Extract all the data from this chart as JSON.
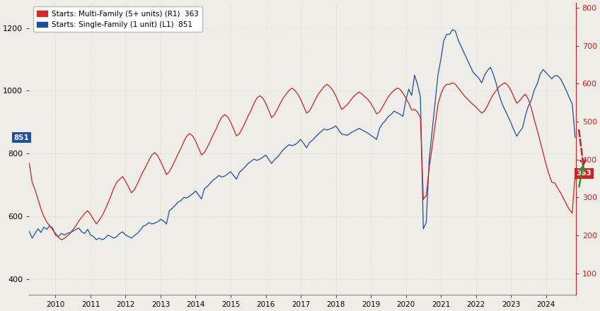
{
  "legend_entries": [
    "Starts: Multi-Family (5+ units) (R1)  363",
    "Starts: Single-Family (1 unit) (L1)  851"
  ],
  "legend_colors": [
    "#d12b2b",
    "#1a4f9c"
  ],
  "left_axis": {
    "ylim": [
      350,
      1280
    ],
    "yticks": [
      400,
      600,
      800,
      1000,
      1200
    ]
  },
  "right_axis": {
    "ylim": [
      43.75,
      812.5
    ],
    "yticks": [
      100,
      200,
      300,
      400,
      500,
      600,
      700,
      800
    ]
  },
  "left_label_value": "851",
  "right_label_value": "363",
  "background_color": "#eeede8",
  "grid_color": "#d8d6cf",
  "line_color_blue": "#1f4e9b",
  "line_color_red": "#cc2222",
  "arrow_red_color": "#cc2222",
  "arrow_green_color": "#3a8a2e",
  "xlim": [
    2009.25,
    2024.85
  ],
  "xticks": [
    2010,
    2011,
    2012,
    2013,
    2014,
    2015,
    2016,
    2017,
    2018,
    2019,
    2020,
    2021,
    2022,
    2023,
    2024
  ],
  "sf_data": [
    552,
    530,
    545,
    560,
    548,
    565,
    558,
    570,
    562,
    540,
    535,
    545,
    540,
    545,
    548,
    552,
    558,
    562,
    550,
    545,
    558,
    540,
    535,
    525,
    530,
    525,
    530,
    540,
    535,
    530,
    535,
    545,
    550,
    540,
    535,
    530,
    538,
    545,
    555,
    568,
    572,
    580,
    575,
    578,
    582,
    590,
    585,
    575,
    618,
    625,
    635,
    645,
    650,
    660,
    658,
    665,
    672,
    680,
    668,
    655,
    688,
    695,
    705,
    715,
    722,
    730,
    725,
    728,
    735,
    742,
    730,
    718,
    740,
    748,
    758,
    768,
    775,
    782,
    778,
    782,
    788,
    795,
    782,
    768,
    780,
    788,
    800,
    812,
    820,
    828,
    825,
    828,
    835,
    845,
    832,
    818,
    835,
    842,
    852,
    862,
    870,
    878,
    875,
    878,
    882,
    888,
    875,
    862,
    860,
    858,
    865,
    870,
    875,
    880,
    875,
    870,
    865,
    858,
    852,
    845,
    880,
    895,
    905,
    918,
    925,
    935,
    930,
    925,
    918,
    970,
    1005,
    985,
    1050,
    1020,
    980,
    560,
    580,
    780,
    870,
    960,
    1050,
    1100,
    1160,
    1180,
    1180,
    1195,
    1190,
    1160,
    1140,
    1120,
    1100,
    1080,
    1060,
    1050,
    1040,
    1025,
    1050,
    1065,
    1075,
    1052,
    1022,
    985,
    958,
    938,
    918,
    898,
    875,
    855,
    870,
    882,
    922,
    952,
    970,
    1002,
    1022,
    1052,
    1068,
    1058,
    1048,
    1038,
    1048,
    1048,
    1038,
    1020,
    1000,
    978,
    958,
    851
  ],
  "mf_data": [
    390,
    340,
    320,
    295,
    270,
    250,
    235,
    225,
    215,
    205,
    195,
    188,
    192,
    198,
    205,
    215,
    225,
    238,
    248,
    258,
    265,
    255,
    242,
    230,
    240,
    252,
    268,
    285,
    305,
    325,
    340,
    348,
    355,
    342,
    328,
    312,
    320,
    335,
    352,
    368,
    382,
    398,
    412,
    418,
    410,
    395,
    378,
    360,
    368,
    382,
    398,
    415,
    430,
    448,
    462,
    468,
    462,
    448,
    430,
    412,
    418,
    432,
    448,
    465,
    480,
    498,
    512,
    518,
    512,
    498,
    480,
    462,
    468,
    482,
    498,
    515,
    530,
    548,
    562,
    568,
    562,
    548,
    530,
    510,
    518,
    532,
    548,
    562,
    572,
    582,
    588,
    582,
    572,
    558,
    540,
    522,
    528,
    542,
    558,
    572,
    582,
    592,
    598,
    592,
    582,
    568,
    550,
    532,
    538,
    545,
    555,
    565,
    572,
    578,
    572,
    565,
    558,
    548,
    535,
    520,
    525,
    538,
    552,
    565,
    575,
    582,
    588,
    585,
    575,
    562,
    548,
    530,
    532,
    525,
    510,
    295,
    305,
    378,
    432,
    488,
    545,
    572,
    590,
    598,
    598,
    602,
    598,
    588,
    578,
    568,
    560,
    552,
    545,
    538,
    530,
    522,
    528,
    542,
    558,
    572,
    582,
    592,
    598,
    602,
    595,
    582,
    565,
    548,
    555,
    565,
    572,
    558,
    535,
    505,
    478,
    448,
    418,
    388,
    362,
    340,
    338,
    325,
    312,
    298,
    282,
    268,
    258,
    363
  ]
}
